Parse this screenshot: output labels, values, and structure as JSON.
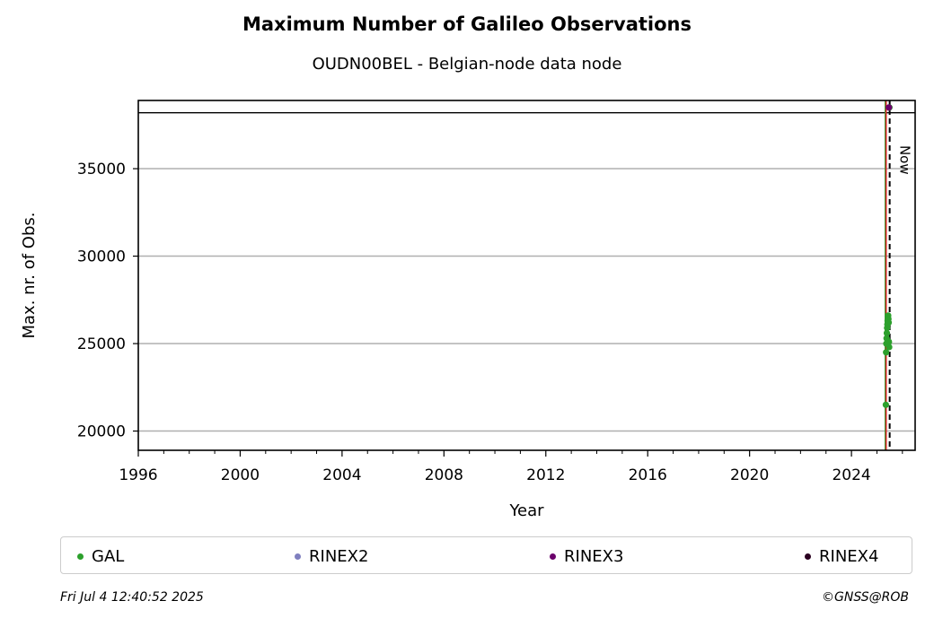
{
  "chart_data": {
    "type": "scatter",
    "title": "Maximum Number of Galileo Observations",
    "subtitle": "OUDN00BEL - Belgian-node data node",
    "xlabel": "Year",
    "ylabel": "Max. nr. of Obs.",
    "xlim": [
      1996,
      2026.5
    ],
    "ylim": [
      18900,
      38900
    ],
    "x_ticks": [
      "1996",
      "2000",
      "2004",
      "2008",
      "2012",
      "2016",
      "2020",
      "2024"
    ],
    "y_ticks": [
      "20000",
      "25000",
      "30000",
      "35000"
    ],
    "grid": "horizontal",
    "now_label": "Now",
    "legend_position": "bottom",
    "series": [
      {
        "name": "GAL",
        "color": "#2ca02c",
        "x": [
          2025.35,
          2025.36,
          2025.37,
          2025.38,
          2025.39,
          2025.4,
          2025.41,
          2025.42,
          2025.43,
          2025.44,
          2025.45,
          2025.46,
          2025.47,
          2025.48,
          2025.49
        ],
        "y": [
          21500,
          24500,
          25000,
          25300,
          25600,
          25900,
          26100,
          26300,
          26500,
          26600,
          26400,
          26200,
          25100,
          24800,
          38500
        ]
      },
      {
        "name": "RINEX2",
        "color": "#7f7fbf",
        "x": [],
        "y": []
      },
      {
        "name": "RINEX3",
        "color": "#6b006b",
        "x": [
          2025.47
        ],
        "y": [
          38500
        ]
      },
      {
        "name": "RINEX4",
        "color": "#2b0020",
        "x": [],
        "y": []
      }
    ]
  },
  "footer": {
    "timestamp": "Fri Jul  4 12:40:52 2025",
    "copyright": "©GNSS@ROB"
  }
}
